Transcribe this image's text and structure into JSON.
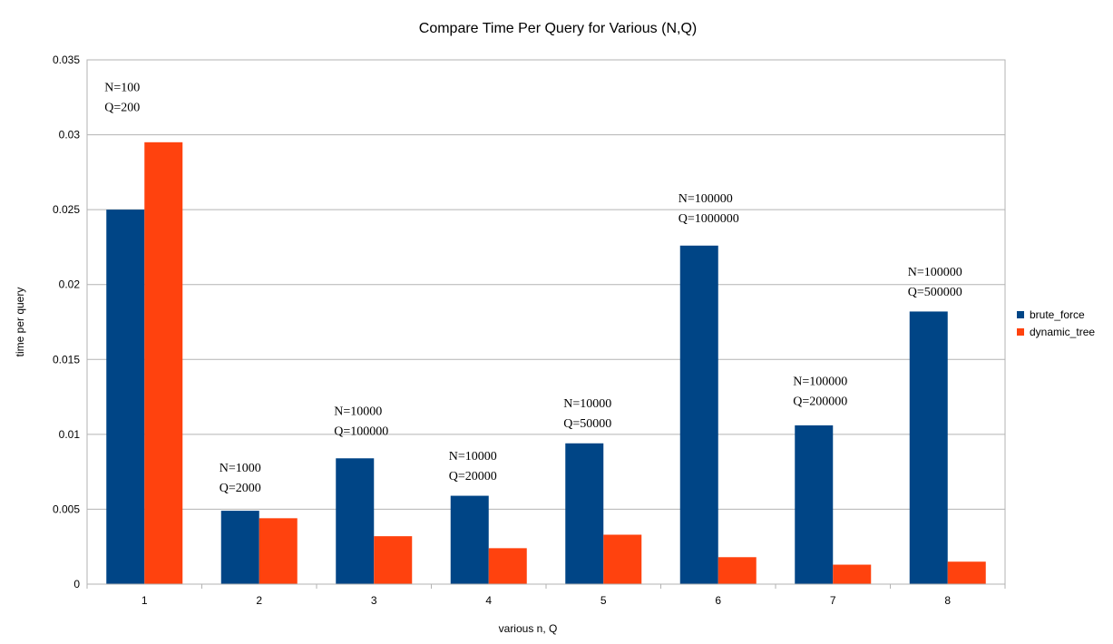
{
  "chart_data": {
    "type": "bar",
    "title": "Compare Time Per Query for Various (N,Q)",
    "xlabel": "various n, Q",
    "ylabel": "time per query",
    "categories": [
      "1",
      "2",
      "3",
      "4",
      "5",
      "6",
      "7",
      "8"
    ],
    "ylim": [
      0,
      0.035
    ],
    "yticks": [
      0,
      0.005,
      0.01,
      0.015,
      0.02,
      0.025,
      0.03,
      0.035
    ],
    "ytick_labels": [
      "0",
      "0.005",
      "0.01",
      "0.015",
      "0.02",
      "0.025",
      "0.03",
      "0.035"
    ],
    "grid": true,
    "legend_position": "right",
    "series": [
      {
        "name": "brute_force",
        "color": "#004586",
        "values": [
          0.025,
          0.0049,
          0.0084,
          0.0059,
          0.0094,
          0.0226,
          0.0106,
          0.0182
        ]
      },
      {
        "name": "dynamic_tree",
        "color": "#ff420e",
        "values": [
          0.0295,
          0.0044,
          0.0032,
          0.0024,
          0.0033,
          0.0018,
          0.0013,
          0.0015
        ]
      }
    ],
    "annotations": [
      {
        "category": "1",
        "lines": [
          "N=100",
          "Q=200"
        ],
        "value": 0.0329
      },
      {
        "category": "2",
        "lines": [
          "N=1000",
          "Q=2000"
        ],
        "value": 0.0075
      },
      {
        "category": "3",
        "lines": [
          "N=10000",
          "Q=100000"
        ],
        "value": 0.0113
      },
      {
        "category": "4",
        "lines": [
          "N=10000",
          "Q=20000"
        ],
        "value": 0.0083
      },
      {
        "category": "5",
        "lines": [
          "N=10000",
          "Q=50000"
        ],
        "value": 0.0118
      },
      {
        "category": "6",
        "lines": [
          "N=100000",
          "Q=1000000"
        ],
        "value": 0.0255
      },
      {
        "category": "7",
        "lines": [
          "N=100000",
          "Q=200000"
        ],
        "value": 0.0133
      },
      {
        "category": "8",
        "lines": [
          "N=100000",
          "Q=500000"
        ],
        "value": 0.0206
      }
    ]
  }
}
